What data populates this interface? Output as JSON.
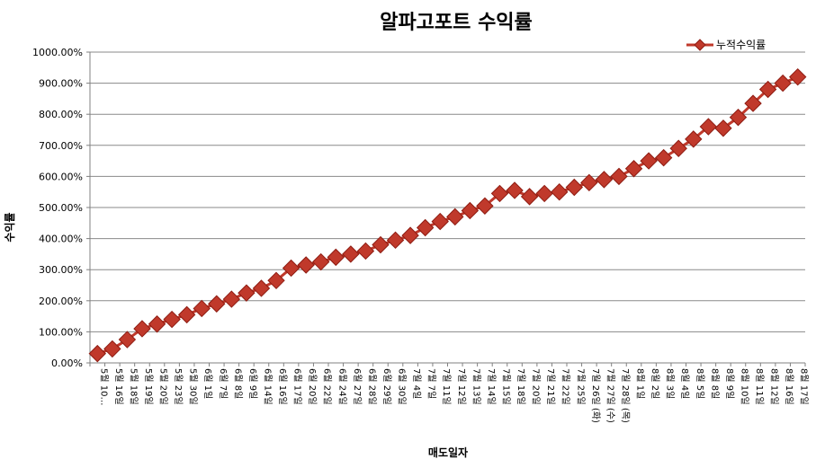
{
  "chart_data": {
    "type": "line",
    "title": "알파고포트 수익률",
    "xlabel": "매도일자",
    "ylabel": "수익률",
    "ylim": [
      0,
      1000
    ],
    "y_unit": "%",
    "grid": true,
    "legend_position": "top-right",
    "categories": [
      "5월 10…",
      "5월 16일",
      "5월 18일",
      "5월 19일",
      "5월 20일",
      "5월 23일",
      "5월 30일",
      "6월 1일",
      "6월 7일",
      "6월 8일",
      "6월 9일",
      "6월 14일",
      "6월 16일",
      "6월 17일",
      "6월 20일",
      "6월 22일",
      "6월 24일",
      "6월 27일",
      "6월 28일",
      "6월 29일",
      "6월 30일",
      "7월 4일",
      "7월 7일",
      "7월 11일",
      "7월 12일",
      "7월 13일",
      "7월 14일",
      "7월 15일",
      "7월 18일",
      "7월 20일",
      "7월 21일",
      "7월 22일",
      "7월 25일",
      "7월 26일 (화)",
      "7월 27일 (수)",
      "7월 28일 (목)",
      "8월 1일",
      "8월 2일",
      "8월 3일",
      "8월 4일",
      "8월 5일",
      "8월 8일",
      "8월 9일",
      "8월 10일",
      "8월 11일",
      "8월 12일",
      "8월 16일",
      "8월 17일"
    ],
    "series": [
      {
        "name": "누적수익률",
        "color": "#c0392b",
        "values": [
          30,
          45,
          75,
          110,
          125,
          140,
          155,
          175,
          190,
          205,
          225,
          240,
          265,
          305,
          315,
          325,
          340,
          350,
          360,
          380,
          395,
          410,
          435,
          455,
          470,
          490,
          505,
          545,
          555,
          535,
          545,
          550,
          565,
          580,
          590,
          600,
          625,
          650,
          660,
          690,
          720,
          760,
          755,
          790,
          835,
          880,
          900,
          920
        ]
      }
    ]
  }
}
